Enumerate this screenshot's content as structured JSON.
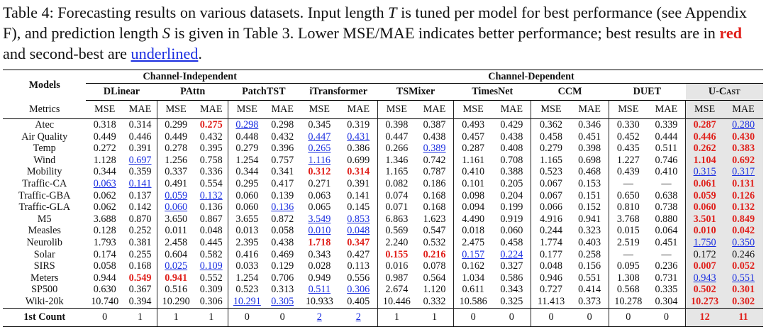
{
  "caption": {
    "prefix": "Table 4: Forecasting results on various datasets. Input length ",
    "var_t": "T",
    "mid1": " is tuned per model for best performance (see Appendix F), and prediction length ",
    "var_s": "S",
    "mid2": " is given in Table 3. Lower MSE/MAE indicates better performance; best results are in ",
    "red_word": "red",
    "mid3": " and second-best are ",
    "underlined_word": "underlined",
    "suffix": "."
  },
  "table": {
    "corner_label": "Models",
    "metrics_label": "Metrics",
    "groups": [
      {
        "label": "Channel-Independent",
        "span": 6
      },
      {
        "label": "Channel-Dependent",
        "span": 12
      }
    ],
    "models": [
      "DLinear",
      "PAttn",
      "PatchTST",
      "iTransformer",
      "TSMixer",
      "TimesNet",
      "CCM",
      "DUET",
      "U-Cast"
    ],
    "metric_names": [
      "MSE",
      "MAE"
    ],
    "rows": [
      {
        "dataset": "Atec",
        "values": [
          "0.318",
          "0.314",
          "0.299",
          "0.275",
          "0.298",
          "0.298",
          "0.345",
          "0.319",
          "0.398",
          "0.387",
          "0.493",
          "0.429",
          "0.362",
          "0.346",
          "0.330",
          "0.339",
          "0.287",
          "0.280"
        ],
        "best": [
          3,
          16
        ],
        "second": [
          4,
          17
        ]
      },
      {
        "dataset": "Air Quality",
        "values": [
          "0.449",
          "0.446",
          "0.449",
          "0.432",
          "0.448",
          "0.432",
          "0.447",
          "0.431",
          "0.447",
          "0.438",
          "0.457",
          "0.438",
          "0.458",
          "0.451",
          "0.452",
          "0.444",
          "0.446",
          "0.430"
        ],
        "best": [
          16,
          17
        ],
        "second": [
          6,
          7
        ]
      },
      {
        "dataset": "Temp",
        "values": [
          "0.272",
          "0.391",
          "0.278",
          "0.395",
          "0.279",
          "0.396",
          "0.265",
          "0.386",
          "0.266",
          "0.389",
          "0.287",
          "0.408",
          "0.279",
          "0.398",
          "0.435",
          "0.511",
          "0.262",
          "0.383"
        ],
        "best": [
          16,
          17
        ],
        "second": [
          6,
          9
        ]
      },
      {
        "dataset": "Wind",
        "values": [
          "1.128",
          "0.697",
          "1.256",
          "0.758",
          "1.254",
          "0.757",
          "1.116",
          "0.699",
          "1.346",
          "0.742",
          "1.161",
          "0.708",
          "1.165",
          "0.698",
          "1.227",
          "0.746",
          "1.104",
          "0.692"
        ],
        "best": [
          16,
          17
        ],
        "second": [
          1,
          6
        ]
      },
      {
        "dataset": "Mobility",
        "values": [
          "0.344",
          "0.359",
          "0.337",
          "0.336",
          "0.344",
          "0.341",
          "0.312",
          "0.314",
          "1.165",
          "0.787",
          "0.410",
          "0.388",
          "0.523",
          "0.468",
          "0.439",
          "0.410",
          "0.315",
          "0.317"
        ],
        "best": [
          6,
          7
        ],
        "second": [
          16,
          17
        ]
      },
      {
        "dataset": "Traffic-CA",
        "values": [
          "0.063",
          "0.141",
          "0.491",
          "0.554",
          "0.295",
          "0.417",
          "0.271",
          "0.391",
          "0.082",
          "0.186",
          "0.101",
          "0.205",
          "0.067",
          "0.153",
          "—",
          "—",
          "0.061",
          "0.131"
        ],
        "best": [
          16,
          17
        ],
        "second": [
          0,
          1
        ]
      },
      {
        "dataset": "Traffic-GBA",
        "values": [
          "0.062",
          "0.137",
          "0.059",
          "0.132",
          "0.060",
          "0.139",
          "0.063",
          "0.141",
          "0.074",
          "0.168",
          "0.098",
          "0.204",
          "0.067",
          "0.151",
          "0.650",
          "0.638",
          "0.059",
          "0.126"
        ],
        "best": [
          16,
          17
        ],
        "second": [
          2,
          3
        ]
      },
      {
        "dataset": "Traffic-GLA",
        "values": [
          "0.062",
          "0.142",
          "0.060",
          "0.136",
          "0.060",
          "0.136",
          "0.065",
          "0.145",
          "0.071",
          "0.168",
          "0.094",
          "0.199",
          "0.066",
          "0.152",
          "0.810",
          "0.738",
          "0.060",
          "0.132"
        ],
        "best": [
          16,
          17
        ],
        "second": [
          2,
          5
        ]
      },
      {
        "dataset": "M5",
        "values": [
          "3.688",
          "0.870",
          "3.650",
          "0.867",
          "3.655",
          "0.872",
          "3.549",
          "0.853",
          "6.863",
          "1.623",
          "4.490",
          "0.919",
          "4.916",
          "0.941",
          "3.768",
          "0.880",
          "3.501",
          "0.849"
        ],
        "best": [
          16,
          17
        ],
        "second": [
          6,
          7
        ]
      },
      {
        "dataset": "Measles",
        "values": [
          "0.128",
          "0.252",
          "0.011",
          "0.048",
          "0.013",
          "0.058",
          "0.010",
          "0.048",
          "0.569",
          "0.547",
          "0.018",
          "0.060",
          "0.244",
          "0.323",
          "0.015",
          "0.064",
          "0.010",
          "0.042"
        ],
        "best": [
          16,
          17
        ],
        "second": [
          6,
          7
        ]
      },
      {
        "dataset": "Neurolib",
        "values": [
          "1.793",
          "0.381",
          "2.458",
          "0.445",
          "2.395",
          "0.438",
          "1.718",
          "0.347",
          "2.240",
          "0.532",
          "2.475",
          "0.458",
          "1.774",
          "0.403",
          "2.519",
          "0.451",
          "1.750",
          "0.350"
        ],
        "best": [
          6,
          7
        ],
        "second": [
          16,
          17
        ]
      },
      {
        "dataset": "Solar",
        "values": [
          "0.174",
          "0.255",
          "0.604",
          "0.582",
          "0.416",
          "0.469",
          "0.343",
          "0.427",
          "0.155",
          "0.216",
          "0.157",
          "0.224",
          "0.177",
          "0.258",
          "—",
          "—",
          "0.172",
          "0.246"
        ],
        "best": [
          8,
          9
        ],
        "second": [
          10,
          11
        ]
      },
      {
        "dataset": "SIRS",
        "values": [
          "0.058",
          "0.168",
          "0.025",
          "0.109",
          "0.033",
          "0.129",
          "0.028",
          "0.113",
          "0.016",
          "0.078",
          "0.162",
          "0.327",
          "0.048",
          "0.156",
          "0.095",
          "0.236",
          "0.007",
          "0.052"
        ],
        "best": [
          16,
          17
        ],
        "second": [
          2,
          3
        ]
      },
      {
        "dataset": "Meters",
        "values": [
          "0.944",
          "0.549",
          "0.941",
          "0.552",
          "1.254",
          "0.706",
          "0.949",
          "0.556",
          "0.987",
          "0.564",
          "1.034",
          "0.586",
          "0.946",
          "0.551",
          "1.308",
          "0.731",
          "0.943",
          "0.551"
        ],
        "best": [
          1,
          2
        ],
        "second": [
          16,
          17
        ]
      },
      {
        "dataset": "SP500",
        "values": [
          "0.630",
          "0.367",
          "0.516",
          "0.309",
          "0.523",
          "0.313",
          "0.511",
          "0.306",
          "2.674",
          "1.120",
          "0.611",
          "0.343",
          "0.727",
          "0.414",
          "0.568",
          "0.335",
          "0.502",
          "0.301"
        ],
        "best": [
          16,
          17
        ],
        "second": [
          6,
          7
        ]
      },
      {
        "dataset": "Wiki-20k",
        "values": [
          "10.740",
          "0.394",
          "10.290",
          "0.306",
          "10.291",
          "0.305",
          "10.933",
          "0.405",
          "10.446",
          "0.332",
          "10.586",
          "0.325",
          "11.413",
          "0.373",
          "10.278",
          "0.304",
          "10.273",
          "0.302"
        ],
        "best": [
          16,
          17
        ],
        "second": [
          4,
          5
        ]
      }
    ],
    "count_row": {
      "label": "1st Count",
      "values": [
        "0",
        "1",
        "1",
        "1",
        "0",
        "0",
        "2",
        "2",
        "1",
        "1",
        "0",
        "0",
        "0",
        "0",
        "0",
        "0",
        "12",
        "11"
      ],
      "best": [
        16,
        17
      ],
      "second": [
        6,
        7
      ]
    },
    "colors": {
      "best": "#e0201b",
      "second": "#1a2ee0",
      "highlight_bg": "#e6e6e6"
    }
  }
}
